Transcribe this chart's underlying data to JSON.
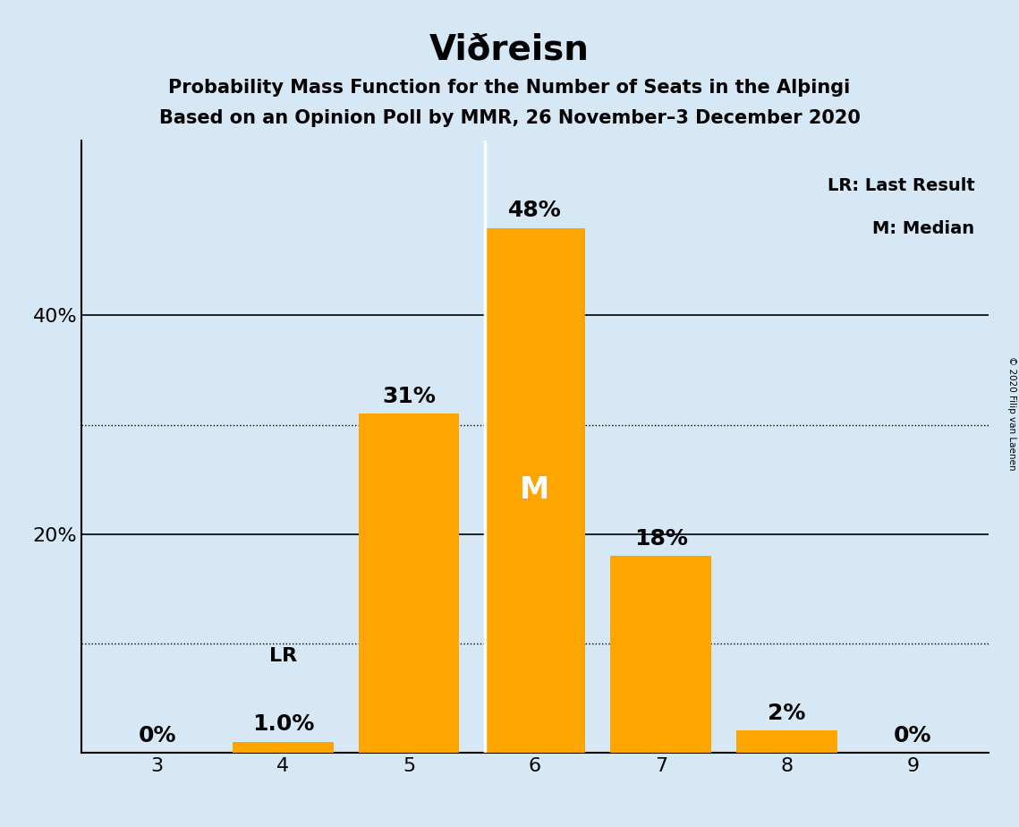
{
  "title": "Viðreisn",
  "subtitle1": "Probability Mass Function for the Number of Seats in the Alþingi",
  "subtitle2": "Based on an Opinion Poll by MMR, 26 November–3 December 2020",
  "copyright": "© 2020 Filip van Laenen",
  "seats": [
    3,
    4,
    5,
    6,
    7,
    8,
    9
  ],
  "probabilities": [
    0.0,
    1.0,
    31.0,
    48.0,
    18.0,
    2.0,
    0.0
  ],
  "bar_color": "#FFA500",
  "background_color": "#D6E8F5",
  "median_seat": 6,
  "last_result_seat": 4,
  "legend_lr": "LR: Last Result",
  "legend_m": "M: Median",
  "lr_label": "LR",
  "m_label": "M",
  "ylim": [
    0,
    56
  ],
  "dotted_lines": [
    10.0,
    30.0
  ],
  "solid_lines": [
    20.0,
    40.0
  ],
  "bar_width": 0.8
}
